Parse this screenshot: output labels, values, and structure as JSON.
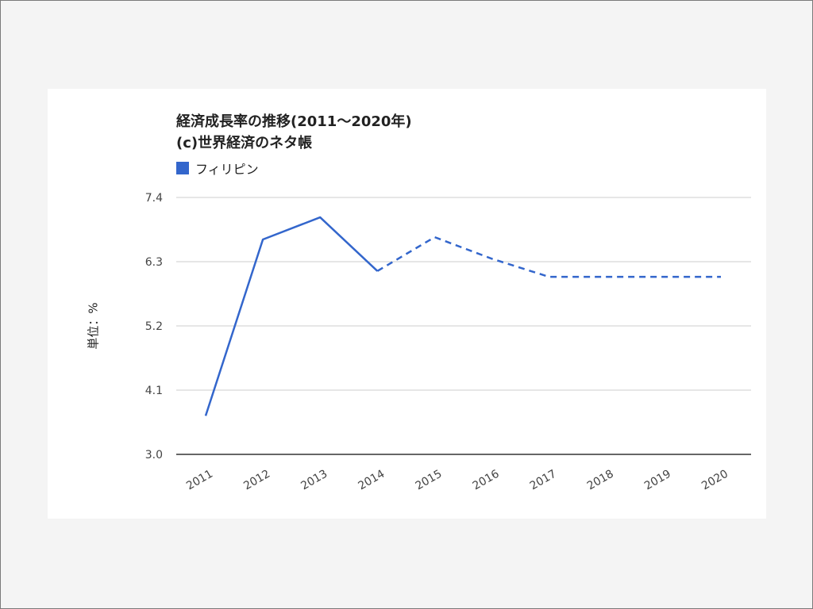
{
  "chart_data": {
    "type": "line",
    "title_lines": [
      "経済成長率の推移(2011～2020年)",
      "(c)世界経済のネタ帳"
    ],
    "ylabel": "単位：%",
    "xlabel": "",
    "categories": [
      "2011",
      "2012",
      "2013",
      "2014",
      "2015",
      "2016",
      "2017",
      "2018",
      "2019",
      "2020"
    ],
    "y_ticks": [
      "3.0",
      "4.1",
      "5.2",
      "6.3",
      "7.4"
    ],
    "ylim": [
      3.0,
      7.4
    ],
    "series": [
      {
        "name": "フィリピン",
        "color": "#3366cc",
        "values": [
          3.66,
          6.68,
          7.06,
          6.14,
          6.72,
          6.35,
          6.04,
          6.04,
          6.04,
          6.04
        ],
        "actual_through": "2014",
        "projected_from": "2014"
      }
    ],
    "grid": true,
    "legend_position": "top-left"
  }
}
